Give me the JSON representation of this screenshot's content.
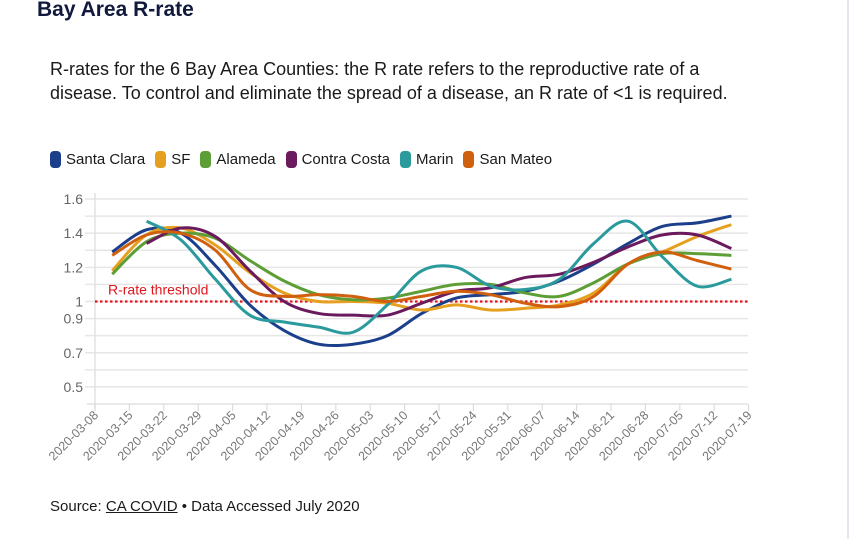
{
  "page": {
    "title": "Bay Area R-rate",
    "description": "R-rates for the 6 Bay Area Counties: the R rate refers to the reproductive rate of a disease. To control and eliminate the spread of a disease, an R rate of <1 is required.",
    "source_prefix": "Source:",
    "source_link": "CA COVID",
    "source_suffix": "• Data Accessed July 2020"
  },
  "chart_data": {
    "type": "line",
    "title": "",
    "xlabel": "",
    "ylabel": "",
    "ylim": [
      0.4,
      1.6
    ],
    "yticks": [
      {
        "value": 0.5,
        "label": "0.5"
      },
      {
        "value": 0.7,
        "label": "0.7"
      },
      {
        "value": 0.9,
        "label": "0.9"
      },
      {
        "value": 1.0,
        "label": "1"
      },
      {
        "value": 1.2,
        "label": "1.2"
      },
      {
        "value": 1.4,
        "label": "1.4"
      },
      {
        "value": 1.6,
        "label": "1.6"
      }
    ],
    "gridlines": [
      0.5,
      0.6,
      0.7,
      0.8,
      0.9,
      1.0,
      1.1,
      1.2,
      1.3,
      1.4,
      1.5,
      1.6
    ],
    "grid": true,
    "legend_position": "top-left",
    "x": [
      "2020-03-08",
      "2020-03-15",
      "2020-03-22",
      "2020-03-29",
      "2020-04-05",
      "2020-04-12",
      "2020-04-19",
      "2020-04-26",
      "2020-05-03",
      "2020-05-10",
      "2020-05-17",
      "2020-05-24",
      "2020-05-31",
      "2020-06-07",
      "2020-06-14",
      "2020-06-21",
      "2020-06-28",
      "2020-07-05",
      "2020-07-12",
      "2020-07-19"
    ],
    "threshold": {
      "value": 1.0,
      "label": "R-rate threshold",
      "color": "#e0151c"
    },
    "series": [
      {
        "name": "Santa Clara",
        "color": "#1b3f8b",
        "points": [
          [
            0.5,
            1.29
          ],
          [
            1.5,
            1.42
          ],
          [
            2.5,
            1.4
          ],
          [
            3.5,
            1.21
          ],
          [
            4.5,
            0.98
          ],
          [
            5.5,
            0.83
          ],
          [
            6.5,
            0.75
          ],
          [
            7.5,
            0.75
          ],
          [
            8.5,
            0.8
          ],
          [
            9.5,
            0.93
          ],
          [
            10.5,
            1.02
          ],
          [
            11.5,
            1.04
          ],
          [
            12.5,
            1.06
          ],
          [
            13.5,
            1.12
          ],
          [
            14.5,
            1.22
          ],
          [
            15.5,
            1.34
          ],
          [
            16.5,
            1.44
          ],
          [
            17.5,
            1.46
          ],
          [
            18.5,
            1.5
          ]
        ]
      },
      {
        "name": "SF",
        "color": "#e6a020",
        "points": [
          [
            0.5,
            1.18
          ],
          [
            1.5,
            1.39
          ],
          [
            2.5,
            1.43
          ],
          [
            3.5,
            1.33
          ],
          [
            4.5,
            1.17
          ],
          [
            5.5,
            1.05
          ],
          [
            6.5,
            1.0
          ],
          [
            7.5,
            1.0
          ],
          [
            8.5,
            0.99
          ],
          [
            9.5,
            0.95
          ],
          [
            10.5,
            0.98
          ],
          [
            11.5,
            0.95
          ],
          [
            12.5,
            0.96
          ],
          [
            13.5,
            0.98
          ],
          [
            14.5,
            1.05
          ],
          [
            15.5,
            1.22
          ],
          [
            16.5,
            1.29
          ],
          [
            17.5,
            1.38
          ],
          [
            18.5,
            1.45
          ]
        ]
      },
      {
        "name": "Alameda",
        "color": "#5e9e36",
        "points": [
          [
            0.5,
            1.16
          ],
          [
            1.5,
            1.35
          ],
          [
            2.5,
            1.4
          ],
          [
            3.5,
            1.37
          ],
          [
            4.5,
            1.24
          ],
          [
            5.5,
            1.12
          ],
          [
            6.5,
            1.04
          ],
          [
            7.5,
            1.01
          ],
          [
            8.5,
            1.02
          ],
          [
            9.5,
            1.06
          ],
          [
            10.5,
            1.1
          ],
          [
            11.5,
            1.1
          ],
          [
            12.5,
            1.05
          ],
          [
            13.5,
            1.03
          ],
          [
            14.5,
            1.11
          ],
          [
            15.5,
            1.22
          ],
          [
            16.5,
            1.28
          ],
          [
            17.5,
            1.28
          ],
          [
            18.5,
            1.27
          ]
        ]
      },
      {
        "name": "Contra Costa",
        "color": "#6b1a5e",
        "points": [
          [
            1.5,
            1.34
          ],
          [
            2.5,
            1.43
          ],
          [
            3.5,
            1.38
          ],
          [
            4.5,
            1.18
          ],
          [
            5.5,
            1.0
          ],
          [
            6.5,
            0.93
          ],
          [
            7.5,
            0.92
          ],
          [
            8.5,
            0.92
          ],
          [
            9.5,
            0.99
          ],
          [
            10.5,
            1.06
          ],
          [
            11.5,
            1.08
          ],
          [
            12.5,
            1.14
          ],
          [
            13.5,
            1.16
          ],
          [
            14.5,
            1.23
          ],
          [
            15.5,
            1.32
          ],
          [
            16.5,
            1.39
          ],
          [
            17.5,
            1.39
          ],
          [
            18.5,
            1.31
          ]
        ]
      },
      {
        "name": "Marin",
        "color": "#2a9a9c",
        "points": [
          [
            1.5,
            1.47
          ],
          [
            2.5,
            1.36
          ],
          [
            3.5,
            1.13
          ],
          [
            4.5,
            0.92
          ],
          [
            5.5,
            0.88
          ],
          [
            6.5,
            0.85
          ],
          [
            7.5,
            0.82
          ],
          [
            8.5,
            0.98
          ],
          [
            9.5,
            1.18
          ],
          [
            10.5,
            1.2
          ],
          [
            11.5,
            1.09
          ],
          [
            12.5,
            1.07
          ],
          [
            13.5,
            1.13
          ],
          [
            14.5,
            1.34
          ],
          [
            15.5,
            1.47
          ],
          [
            16.5,
            1.26
          ],
          [
            17.5,
            1.09
          ],
          [
            18.5,
            1.13
          ]
        ]
      },
      {
        "name": "San Mateo",
        "color": "#d0600e",
        "points": [
          [
            0.5,
            1.27
          ],
          [
            1.5,
            1.39
          ],
          [
            2.5,
            1.4
          ],
          [
            3.5,
            1.3
          ],
          [
            4.5,
            1.07
          ],
          [
            5.5,
            1.03
          ],
          [
            6.5,
            1.04
          ],
          [
            7.5,
            1.03
          ],
          [
            8.5,
            1.0
          ],
          [
            9.5,
            1.03
          ],
          [
            10.5,
            1.06
          ],
          [
            11.5,
            1.04
          ],
          [
            12.5,
            0.99
          ],
          [
            13.5,
            0.97
          ],
          [
            14.5,
            1.03
          ],
          [
            15.5,
            1.22
          ],
          [
            16.5,
            1.29
          ],
          [
            17.5,
            1.24
          ],
          [
            18.5,
            1.19
          ]
        ]
      }
    ]
  }
}
